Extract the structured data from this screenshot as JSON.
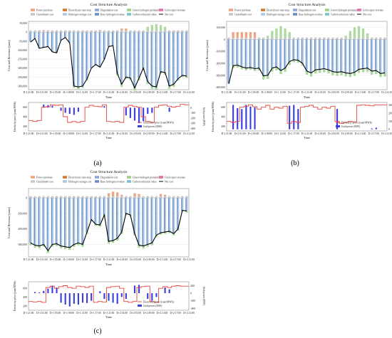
{
  "figure": {
    "panel_labels": [
      "(a)",
      "(b)",
      "(c)"
    ]
  },
  "legend_items": [
    {
      "label": "Power purchase",
      "color": "#f2a27f",
      "kind": "bar"
    },
    {
      "label": "Curtailment cost",
      "color": "#c8c8c8",
      "kind": "bar"
    },
    {
      "label": "Electrolyzer start-stop",
      "color": "#d07a32",
      "kind": "bar"
    },
    {
      "label": "Hydrogen storage cost",
      "color": "#a9cbe8",
      "kind": "bar"
    },
    {
      "label": "Degradation cost",
      "color": "#8fa7d6",
      "kind": "bar"
    },
    {
      "label": "Base hydrogen revenue",
      "color": "#6b8fc4",
      "kind": "bar"
    },
    {
      "label": "Green hydrogen premium",
      "color": "#9ad18b",
      "kind": "bar"
    },
    {
      "label": "Carbon reduction value",
      "color": "#79c0c8",
      "kind": "bar"
    },
    {
      "label": "Grid export revenue",
      "color": "#e070a8",
      "kind": "bar"
    },
    {
      "label": "Net cost",
      "color": "#000000",
      "kind": "line"
    }
  ],
  "colors": {
    "power": "#f2a27f",
    "curtail": "#c8c8c8",
    "storage": "#a9cbe8",
    "base": "#6b8fc4",
    "green": "#9ad18b",
    "net": "#000000",
    "price": "#e8433b",
    "grid": "#3b3fe0"
  },
  "chart_data": [
    {
      "panel": "(a)",
      "type": "bar",
      "title": "Cost Structure Analysis",
      "xlabel": "Time",
      "ylabel": "Cost and Revenue (yuan)",
      "ylim": [
        -320000,
        60000
      ],
      "yticks": [
        50000,
        0,
        -50000,
        -100000,
        -150000,
        -200000,
        -250000,
        -300000
      ],
      "ytick_labels": [
        "50,000",
        "0",
        "-50,000",
        "-100,000",
        "-150,000",
        "-200,000",
        "-250,000",
        "-300,000"
      ],
      "xticks": [
        "D-1 21:00",
        "D+1 01:00",
        "D+1 05:00",
        "D+1 09:00",
        "D+1 13:00",
        "D+1 17:00",
        "D+1 21:00",
        "D+2 01:00",
        "D+2 05:00",
        "D+2 09:00",
        "D+2 13:00",
        "D+2 17:00",
        "D+2 21:00"
      ],
      "net_cost": [
        -55000,
        -35000,
        -90000,
        -85000,
        -80000,
        -110000,
        -115000,
        -45000,
        -30000,
        -60000,
        -300000,
        -305000,
        -300000,
        -260000,
        -200000,
        -180000,
        -195000,
        -150000,
        -80000,
        -75000,
        -230000,
        -290000,
        -250000,
        -255000,
        -310000,
        -255000,
        -200000,
        -275000,
        -300000,
        -305000,
        -220000,
        -225000,
        -300000,
        -290000,
        -260000,
        -240000,
        -245000
      ],
      "power_purchase": [
        0,
        0,
        10000,
        12000,
        10000,
        0,
        0,
        0,
        0,
        0,
        0,
        0,
        0,
        0,
        0,
        0,
        12000,
        0,
        0,
        0,
        0,
        20000,
        20000,
        0,
        0,
        0,
        0,
        0,
        0,
        0,
        0,
        0,
        0,
        0,
        0,
        0,
        0
      ],
      "green_premium": [
        0,
        0,
        0,
        0,
        0,
        0,
        0,
        0,
        0,
        0,
        0,
        0,
        0,
        0,
        0,
        0,
        0,
        0,
        0,
        0,
        0,
        0,
        0,
        0,
        0,
        0,
        0,
        30000,
        40000,
        45000,
        40000,
        30000,
        0,
        0,
        0,
        0,
        0
      ],
      "green_below": [
        0,
        0,
        0,
        0,
        0,
        0,
        0,
        0,
        0,
        0,
        10000,
        12000,
        10000,
        8000,
        0,
        0,
        0,
        0,
        0,
        0,
        12000,
        15000,
        10000,
        12000,
        15000,
        12000,
        10000,
        15000,
        15000,
        15000,
        10000,
        12000,
        15000,
        15000,
        10000,
        10000,
        10000
      ],
      "sub": {
        "ylabel_left": "Electricity price (yuan/MWh)",
        "ylabel_right": "Grid power (MW)",
        "xlabel": "Time",
        "yticks_left": [
          200,
          400,
          600
        ],
        "yticks_right": [
          0,
          -100,
          -200,
          -300,
          -400
        ],
        "ylim_left": [
          100,
          700
        ],
        "ylim_right": [
          -450,
          100
        ],
        "legend": [
          "Electricity price (yuan/MWh)",
          "Grid power (MW)"
        ],
        "xticks": [
          "D-1 21:00",
          "D+1 01:00",
          "D+1 05:00",
          "D+1 09:00",
          "D+1 13:00",
          "D+1 17:00",
          "D+1 21:00",
          "D+2 01:00",
          "D+2 05:00",
          "D+2 09:00",
          "D+2 13:00",
          "D+2 17:00",
          "D+2 21:00"
        ],
        "price": [
          320,
          300,
          320,
          600,
          610,
          650,
          640,
          650,
          400,
          280,
          300,
          280,
          300,
          600,
          640,
          620,
          610,
          650,
          300,
          290,
          300,
          280,
          600,
          640,
          620,
          600,
          400,
          300,
          280,
          600,
          640,
          650,
          620,
          600,
          620,
          660,
          650
        ],
        "grid_power": [
          0,
          0,
          0,
          60,
          50,
          40,
          0,
          -60,
          -100,
          -120,
          -140,
          -80,
          0,
          0,
          0,
          0,
          0,
          30,
          0,
          0,
          0,
          0,
          -150,
          -200,
          -250,
          -300,
          -260,
          -120,
          -100,
          0,
          0,
          0,
          -80,
          0,
          0,
          0,
          0
        ]
      }
    },
    {
      "panel": "(b)",
      "type": "bar",
      "title": "Cost Structure Analysis",
      "xlabel": "Time",
      "ylabel": "Cost and Revenue (yuan)",
      "ylim": [
        -420000,
        150000
      ],
      "yticks": [
        100000,
        0,
        -100000,
        -200000,
        -300000,
        -400000
      ],
      "ytick_labels": [
        "100,000",
        "0",
        "-100,000",
        "-200,000",
        "-300,000",
        "-400,000"
      ],
      "xticks": [
        "D-1 21:00",
        "D+1 01:00",
        "D+1 05:00",
        "D+1 09:00",
        "D+1 13:00",
        "D+1 17:00",
        "D+1 21:00",
        "D+2 01:00",
        "D+2 05:00",
        "D+2 09:00",
        "D+2 13:00",
        "D+2 17:00",
        "D+2 21:00"
      ],
      "net_cost": [
        -370000,
        -220000,
        -215000,
        -230000,
        -240000,
        -235000,
        -245000,
        -240000,
        -305000,
        -300000,
        -240000,
        -230000,
        -260000,
        -240000,
        -185000,
        -170000,
        -175000,
        -200000,
        -265000,
        -280000,
        -255000,
        -250000,
        -245000,
        -255000,
        -270000,
        -275000,
        -270000,
        -280000,
        -285000,
        -275000,
        -250000,
        -245000,
        -240000,
        -265000,
        -260000,
        -285000,
        -280000
      ],
      "power_purchase": [
        0,
        60000,
        60000,
        60000,
        60000,
        60000,
        60000,
        0,
        0,
        0,
        0,
        0,
        0,
        0,
        0,
        0,
        0,
        0,
        0,
        0,
        0,
        0,
        0,
        0,
        0,
        0,
        0,
        0,
        0,
        0,
        0,
        0,
        0,
        0,
        0,
        0,
        0
      ],
      "green_premium": [
        0,
        0,
        0,
        0,
        0,
        0,
        0,
        0,
        0,
        30000,
        70000,
        90000,
        110000,
        90000,
        60000,
        0,
        0,
        0,
        0,
        0,
        0,
        0,
        0,
        0,
        0,
        0,
        0,
        30000,
        70000,
        100000,
        110000,
        90000,
        50000,
        0,
        0,
        0,
        0
      ],
      "green_below": [
        0,
        20000,
        20000,
        20000,
        20000,
        20000,
        20000,
        20000,
        30000,
        30000,
        30000,
        30000,
        30000,
        30000,
        30000,
        20000,
        20000,
        20000,
        30000,
        30000,
        30000,
        30000,
        30000,
        30000,
        30000,
        30000,
        30000,
        30000,
        30000,
        30000,
        30000,
        30000,
        30000,
        30000,
        30000,
        30000,
        30000
      ],
      "sub": {
        "ylabel_left": "Electricity price (yuan/MWh)",
        "ylabel_right": "Grid power (MW)",
        "xlabel": "Time",
        "yticks_left": [
          200,
          400,
          600
        ],
        "yticks_right": [
          300,
          200,
          100,
          0
        ],
        "ylim_left": [
          100,
          700
        ],
        "ylim_right": [
          -20,
          330
        ],
        "legend": [
          "Electricity price (yuan/MWh)",
          "Grid power (MW)"
        ],
        "xticks": [
          "D-1 21:00",
          "D+1 01:00",
          "D+1 05:00",
          "D+1 09:00",
          "D+1 13:00",
          "D+1 17:00",
          "D+1 21:00",
          "D+2 01:00",
          "D+2 05:00",
          "D+2 09:00",
          "D+2 13:00",
          "D+2 17:00",
          "D+2 21:00"
        ],
        "price": [
          300,
          280,
          300,
          600,
          620,
          650,
          610,
          560,
          600,
          640,
          560,
          600,
          580,
          620,
          260,
          300,
          280,
          600,
          620,
          640,
          600,
          560,
          600,
          580,
          620,
          300,
          260,
          280,
          300,
          290,
          640,
          650,
          640,
          630,
          650,
          650,
          650
        ],
        "grid_power": [
          0,
          300,
          260,
          250,
          300,
          280,
          270,
          0,
          0,
          0,
          0,
          0,
          0,
          0,
          290,
          300,
          250,
          0,
          0,
          0,
          0,
          0,
          0,
          0,
          0,
          250,
          0,
          0,
          0,
          0,
          0,
          0,
          0,
          10,
          20,
          0,
          0
        ]
      }
    },
    {
      "panel": "(c)",
      "type": "bar",
      "title": "Cost Structure Analysis",
      "xlabel": "Time",
      "ylabel": "Cost and Revenue (yuan)",
      "ylim": [
        -380000,
        60000
      ],
      "yticks": [
        0,
        -100000,
        -200000,
        -300000
      ],
      "ytick_labels": [
        "0",
        "-100,000",
        "-200,000",
        "-300,000"
      ],
      "xticks": [
        "D-1 21:00",
        "D+1 01:00",
        "D+1 05:00",
        "D+1 09:00",
        "D+1 13:00",
        "D+1 17:00",
        "D+1 21:00",
        "D+2 01:00",
        "D+2 05:00",
        "D+2 09:00",
        "D+2 13:00",
        "D+2 17:00",
        "D+2 21:00"
      ],
      "net_cost": [
        -290000,
        -305000,
        -310000,
        -300000,
        -340000,
        -300000,
        -295000,
        -310000,
        -315000,
        -320000,
        -300000,
        -290000,
        -300000,
        -220000,
        -140000,
        -170000,
        -175000,
        -110000,
        -280000,
        -275000,
        -260000,
        -220000,
        -100000,
        -110000,
        -230000,
        -305000,
        -310000,
        -300000,
        -290000,
        -240000,
        -225000,
        -220000,
        -215000,
        -230000,
        -200000,
        -80000,
        -85000
      ],
      "power_purchase": [
        0,
        0,
        0,
        0,
        0,
        0,
        0,
        0,
        0,
        0,
        0,
        0,
        0,
        0,
        0,
        0,
        0,
        0,
        30000,
        40000,
        35000,
        20000,
        0,
        0,
        30000,
        25000,
        0,
        0,
        0,
        0,
        25000,
        20000,
        0,
        0,
        0,
        0,
        0
      ],
      "green_premium": [
        0,
        0,
        0,
        0,
        0,
        0,
        0,
        0,
        0,
        0,
        0,
        0,
        0,
        0,
        0,
        0,
        0,
        0,
        0,
        0,
        0,
        0,
        0,
        0,
        0,
        0,
        0,
        0,
        0,
        0,
        0,
        0,
        0,
        0,
        0,
        0,
        0
      ],
      "green_below": [
        15000,
        15000,
        15000,
        15000,
        15000,
        15000,
        15000,
        15000,
        15000,
        15000,
        15000,
        15000,
        15000,
        12000,
        10000,
        10000,
        10000,
        10000,
        15000,
        15000,
        15000,
        12000,
        10000,
        10000,
        12000,
        15000,
        15000,
        15000,
        15000,
        12000,
        12000,
        12000,
        12000,
        12000,
        12000,
        10000,
        10000
      ],
      "sub": {
        "ylabel_left": "Electricity price (yuan/MWh)",
        "ylabel_right": "Grid power (MW)",
        "xlabel": "Time",
        "yticks_left": [
          200,
          400,
          600
        ],
        "yticks_right": [
          200,
          0,
          -200,
          -400
        ],
        "ylim_left": [
          100,
          750
        ],
        "ylim_right": [
          -450,
          300
        ],
        "legend": [
          "Electricity price (yuan/MWh)",
          "Grid power (MW)"
        ],
        "xticks": [
          "D-1 21:00",
          "D+1 01:00",
          "D+1 05:00",
          "D+1 09:00",
          "D+1 13:00",
          "D+1 17:00",
          "D+1 21:00",
          "D+2 01:00",
          "D+2 05:00",
          "D+2 09:00",
          "D+2 13:00",
          "D+2 17:00",
          "D+2 21:00"
        ],
        "price": [
          300,
          290,
          300,
          280,
          620,
          650,
          600,
          640,
          660,
          620,
          600,
          650,
          640,
          620,
          650,
          280,
          300,
          290,
          620,
          640,
          650,
          600,
          300,
          280,
          300,
          620,
          640,
          650,
          300,
          280,
          600,
          640,
          620,
          650,
          660,
          650,
          650
        ],
        "grid_power": [
          0,
          30,
          20,
          60,
          120,
          200,
          150,
          -250,
          -300,
          -350,
          -280,
          -300,
          -250,
          -260,
          -200,
          0,
          50,
          -150,
          -200,
          -250,
          -280,
          -100,
          -150,
          0,
          200,
          220,
          0,
          -150,
          -200,
          -100,
          0,
          150,
          100,
          0,
          0,
          0,
          0
        ]
      }
    }
  ]
}
